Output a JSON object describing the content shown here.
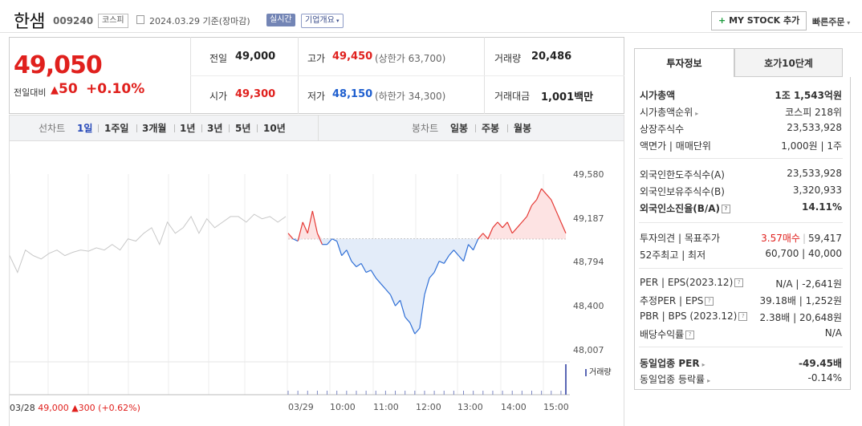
{
  "header": {
    "stock_name": "한샘",
    "stock_code": "009240",
    "market_badge": "코스피",
    "date_text": "2024.03.29  기준(장마감)",
    "realtime_button": "실시간",
    "company_button": "기업개요",
    "mystock_button": "MY STOCK 추가",
    "fast_order": "빠른주문"
  },
  "quote": {
    "price": "49,050",
    "change_label": "전일대비",
    "change_value": "50",
    "change_pct": "+0.10%",
    "prev_label": "전일",
    "prev": "49,000",
    "high_label": "고가",
    "high": "49,450",
    "upper_limit": "(상한가 63,700)",
    "volume_label": "거래량",
    "volume": "20,486",
    "open_label": "시가",
    "open": "49,300",
    "low_label": "저가",
    "low": "48,150",
    "lower_limit": "(하한가 34,300)",
    "amount_label": "거래대금",
    "amount": "1,001",
    "amount_unit": "백만"
  },
  "toolbar": {
    "line_label": "선차트",
    "line_periods": [
      "1일",
      "1주일",
      "3개월",
      "1년",
      "3년",
      "5년",
      "10년"
    ],
    "candle_label": "봉차트",
    "candle_periods": [
      "일봉",
      "주봉",
      "월봉"
    ]
  },
  "chart_data": {
    "type": "line",
    "title": "",
    "ylabel": "",
    "yticks": [
      "49,580",
      "49,187",
      "48,794",
      "48,400",
      "48,007"
    ],
    "ylim": [
      48007,
      49580
    ],
    "reference_price": 49000,
    "xticks": [
      "03/28",
      "03/29",
      "10:00",
      "11:00",
      "12:00",
      "13:00",
      "14:00",
      "15:00"
    ],
    "volume_legend": "거래량",
    "series": [
      {
        "name": "03/28",
        "color": "#c8c8c8",
        "values": [
          48850,
          48700,
          48900,
          48850,
          48820,
          48870,
          48900,
          48850,
          48880,
          48900,
          48890,
          48920,
          48900,
          48950,
          48900,
          49000,
          48980,
          49050,
          49100,
          48950,
          49150,
          49050,
          49100,
          49200,
          49050,
          49180,
          49100,
          49150,
          49200,
          49200,
          49150,
          49220,
          49180,
          49200,
          49150,
          49200
        ]
      },
      {
        "name": "03/29",
        "up_color": "#e53935",
        "down_color": "#2f6fd6",
        "values": [
          49050,
          49000,
          48980,
          49150,
          49050,
          49250,
          49050,
          48950,
          48950,
          49000,
          48980,
          48850,
          48900,
          48800,
          48750,
          48780,
          48700,
          48720,
          48650,
          48600,
          48550,
          48500,
          48400,
          48450,
          48300,
          48250,
          48150,
          48200,
          48500,
          48650,
          48700,
          48800,
          48780,
          48850,
          48900,
          48850,
          48800,
          48950,
          48900,
          49000,
          49050,
          49000,
          49100,
          49150,
          49100,
          49150,
          49050,
          49100,
          49150,
          49200,
          49300,
          49350,
          49450,
          49400,
          49350,
          49250,
          49150,
          49050
        ]
      }
    ],
    "footer_date": "03/28",
    "footer_price": "49,000",
    "footer_change": "300 (+0.62%)"
  },
  "panel": {
    "tab_invest": "투자정보",
    "tab_hoga": "호가10단계",
    "rows1": [
      {
        "label": "시가총액",
        "value": "1조 1,543억원"
      },
      {
        "label": "시가총액순위",
        "value": "코스피 218위"
      },
      {
        "label": "상장주식수",
        "value": "23,533,928"
      },
      {
        "label": "액면가 | 매매단위",
        "value": "1,000원 | 1주"
      }
    ],
    "rows2": [
      {
        "label": "외국인한도주식수(A)",
        "value": "23,533,928"
      },
      {
        "label": "외국인보유주식수(B)",
        "value": "3,320,933"
      },
      {
        "label": "외국인소진율(B/A)",
        "value": "14.11%"
      }
    ],
    "opinion_label": "투자의견 | 목표주가",
    "opinion_value": "3.57매수",
    "target_value": "59,417",
    "w52_label": "52주최고 | 최저",
    "w52_value": "60,700 | 40,000",
    "per_label": "PER | EPS(2023.12)",
    "per_value": "N/A | -2,641원",
    "est_label": "추정PER | EPS",
    "est_value": "39.18배 | 1,252원",
    "pbr_label": "PBR | BPS (2023.12)",
    "pbr_value": "2.38배 | 20,648원",
    "div_label": "배당수익률",
    "div_value": "N/A",
    "ind_per_label": "동일업종 PER",
    "ind_per_value": "-49.45배",
    "ind_rate_label": "동일업종 등락률",
    "ind_rate_value": "-0.14%"
  }
}
